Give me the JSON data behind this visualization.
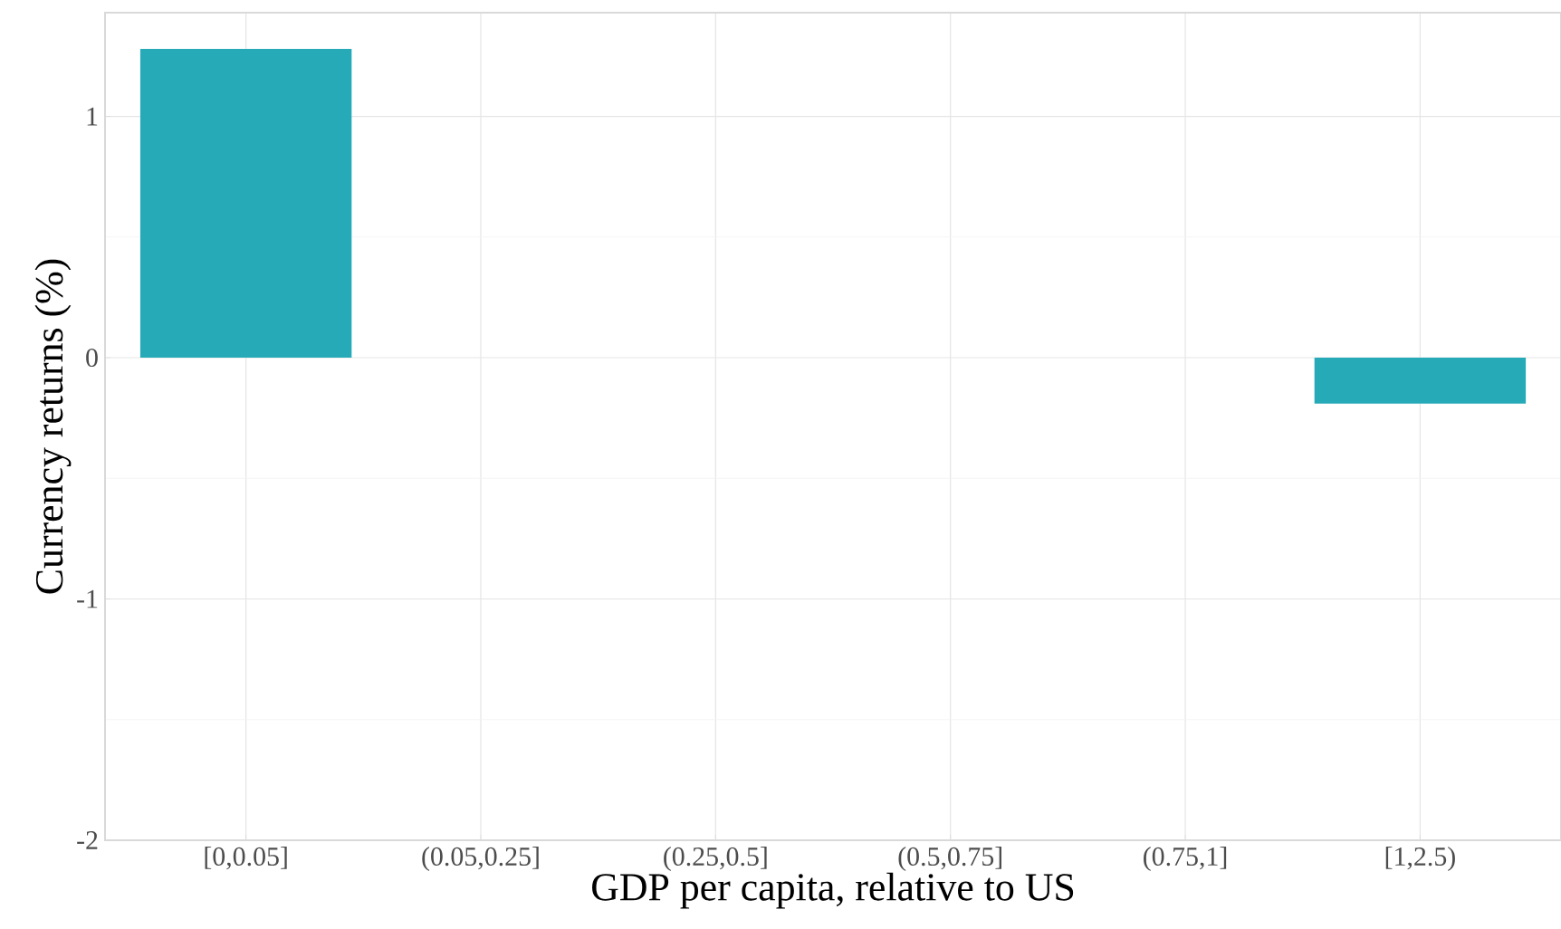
{
  "chart_data": {
    "type": "bar",
    "xlabel": "GDP per capita, relative to US",
    "ylabel": "Currency returns (%)",
    "categories": [
      "[0,0.05]",
      "(0.05,0.25]",
      "(0.25,0.5]",
      "(0.5,0.75]",
      "(0.75,1]",
      "[1,2.5)"
    ],
    "values": [
      1.28,
      null,
      null,
      null,
      null,
      -0.19
    ],
    "color": "#27aab8",
    "ylim": [
      -2,
      1.43
    ],
    "yticks": [
      -2,
      -1,
      0,
      1
    ],
    "grid": true
  }
}
